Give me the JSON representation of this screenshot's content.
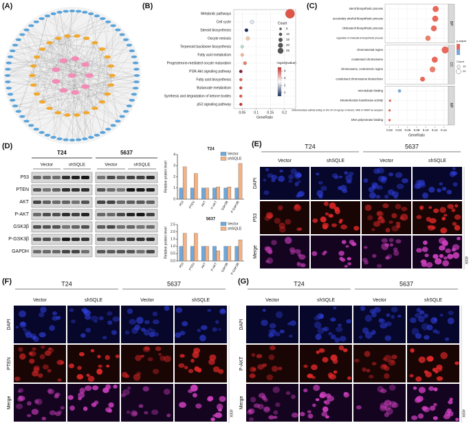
{
  "network": {
    "label": "(A)"
  },
  "kegg": {
    "label": "(B)",
    "type": "scatter",
    "categories": [
      "Metabolic pathways",
      "Cell cycle",
      "Steroid biosynthesis",
      "Oocyte meiosis",
      "Terpenoid backbone biosynthesis",
      "Fatty acid metabolism",
      "Progesterone-mediated oocyte maturation",
      "PI3K-Akt signaling pathway",
      "Fatty acid biosynthesis",
      "Butanoate metabolism",
      "Synthesis and degradation of ketone bodies",
      "p53 signaling pathway"
    ],
    "values": [
      0.22,
      0.085,
      0.065,
      0.07,
      0.05,
      0.05,
      0.06,
      0.045,
      0.045,
      0.045,
      0.045,
      0.045
    ],
    "counts": [
      25,
      8,
      6,
      7,
      5,
      5,
      6,
      5,
      4,
      4,
      4,
      4
    ],
    "colors": [
      "#e05545",
      "#dde4ee",
      "#1a2f5c",
      "#f2c9a8",
      "#b7dfc8",
      "#f5b39a",
      "#e8826a",
      "#7d1d3a",
      "#e06055",
      "#d04845",
      "#e55a50",
      "#c83030"
    ],
    "label_colors": [
      "#333333",
      "#333333",
      "#333333",
      "#333333",
      "#333333",
      "#333333",
      "#333333",
      "#d02020",
      "#333333",
      "#333333",
      "#333333",
      "#d02020"
    ],
    "xlabel": "GeneRatio",
    "xlim": [
      0.02,
      0.24
    ],
    "xticks": [
      0.05,
      0.1,
      0.15,
      0.2
    ],
    "size_legend": {
      "title": "Count",
      "values": [
        5,
        10,
        15,
        20,
        25
      ]
    },
    "color_legend": {
      "title": "-log10(pvalue)",
      "lim": [
        0.5,
        4.5
      ],
      "ticks": [
        1,
        2,
        3,
        4
      ],
      "colors": [
        "#1a2f5c",
        "#ffffff",
        "#c83030"
      ]
    }
  },
  "go": {
    "label": "(C)",
    "type": "scatter",
    "groups": [
      {
        "name": "BP",
        "terms": [
          "sterol biosynthetic process",
          "secondary alcohol biosynthetic process",
          "cholesterol biosynthetic process",
          "regulation of cholesterol biosynthetic process"
        ],
        "values": [
          0.122,
          0.121,
          0.118,
          0.105
        ],
        "counts": [
          20,
          20,
          19,
          17
        ],
        "colors": [
          "#e8685a",
          "#e8685a",
          "#e86a5c",
          "#e9806e"
        ]
      },
      {
        "name": "CC",
        "terms": [
          "chromosomal region",
          "condensed chromosome",
          "chromosome, centromeric region",
          "condensed chromosome kinetochore"
        ],
        "values": [
          0.143,
          0.12,
          0.115,
          0.093
        ],
        "counts": [
          24,
          20,
          19,
          15
        ],
        "colors": [
          "#e8685a",
          "#e8685a",
          "#e9806e",
          "#e8685a"
        ]
      },
      {
        "name": "MF",
        "terms": [
          "microtubule binding",
          "intramolecular transferase activity",
          "oxidoreductase activity acting on the CH-CH group of donors, NAD or NADP as acceptor",
          "DNA polymerase binding"
        ],
        "values": [
          0.042,
          0.021,
          0.02,
          0.02
        ],
        "counts": [
          8,
          4,
          4,
          4
        ],
        "colors": [
          "#7aa6d8",
          "#e8685a",
          "#e8685a",
          "#e8685a"
        ]
      }
    ],
    "xlabel": "GeneRatio",
    "xlim": [
      0.01,
      0.15
    ],
    "xticks": [
      0.02,
      0.04,
      0.06,
      0.08,
      {
        "value": 0.1,
        "label": "0.10"
      },
      0.12,
      0.14
    ],
    "color_legend": {
      "title": "p.adjust",
      "colors": [
        "#e8685a",
        "#7aa6d8"
      ]
    },
    "size_legend": {
      "title": "Count",
      "values": [
        10,
        20
      ]
    }
  },
  "western": {
    "label": "(D)",
    "groups": [
      "T24",
      "5637"
    ],
    "conditions": [
      "Vector",
      "shSQLE",
      "Vector",
      "shSQLE"
    ],
    "proteins": [
      "P53",
      "PTEN",
      "AKT",
      "P-AKT",
      "GSK3β",
      "P-GSK3β",
      "GAPDH"
    ]
  },
  "bars": [
    {
      "type": "bar",
      "title": "T24",
      "ylabel": "Relative protein level",
      "categories": [
        "P53",
        "PTEN",
        "AKT",
        "P-AKT",
        "GSK3B",
        "P-GSK3B"
      ],
      "series": [
        {
          "name": "Vector",
          "color": "#6fa8dc",
          "values": [
            1,
            1,
            1,
            1,
            1,
            1
          ]
        },
        {
          "name": "shSQLE",
          "color": "#f4b183",
          "values": [
            2.9,
            2.3,
            1.0,
            1.1,
            1.1,
            3.2
          ]
        }
      ],
      "ylim": [
        0,
        4
      ],
      "yticks": [
        0,
        1,
        2,
        3,
        4
      ]
    },
    {
      "type": "bar",
      "title": "5637",
      "ylabel": "Relative protein level",
      "categories": [
        "P53",
        "PTEN",
        "AKT",
        "P-AKT",
        "GSK3B",
        "P-GSK3B"
      ],
      "series": [
        {
          "name": "Vector",
          "color": "#6fa8dc",
          "values": [
            1,
            1,
            1,
            1,
            1,
            1
          ]
        },
        {
          "name": "shSQLE",
          "color": "#f4b183",
          "values": [
            1.9,
            1.9,
            1.0,
            0.7,
            1.0,
            1.45
          ]
        }
      ],
      "ylim": [
        0,
        2.5
      ],
      "yticks": [
        {
          "value": 0,
          "label": "0.0"
        },
        0.5,
        {
          "value": 1,
          "label": "1.0"
        },
        1.5,
        {
          "value": 2,
          "label": "2.0"
        },
        2.5
      ]
    }
  ],
  "if_e": {
    "label": "(E)",
    "groups": [
      "T24",
      "5637"
    ],
    "conditions": [
      "Vector",
      "shSQLE",
      "Vector",
      "shSQLE"
    ],
    "rows": [
      "DAPI",
      "P53",
      "Merge"
    ],
    "magnification": "400X"
  },
  "if_f": {
    "label": "(F)",
    "groups": [
      "T24",
      "5637"
    ],
    "conditions": [
      "Vector",
      "shSQLE",
      "Vector",
      "shSQLE"
    ],
    "rows": [
      "DAPI",
      "PTEN",
      "Merge"
    ],
    "magnification": "400X"
  },
  "if_g": {
    "label": "(G)",
    "groups": [
      "T24",
      "5637"
    ],
    "conditions": [
      "Vector",
      "shSQLE",
      "Vector",
      "shSQLE"
    ],
    "rows": [
      "DAPI",
      "P-AKT",
      "Merge"
    ],
    "magnification": "400X"
  }
}
